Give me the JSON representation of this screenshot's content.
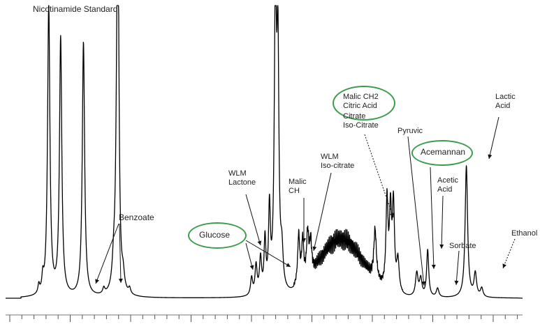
{
  "chart_data": {
    "type": "line",
    "title": "",
    "xlabel": "",
    "ylabel": "",
    "grid": false,
    "legend": "none",
    "series_color": "#000000",
    "highlight_color": "#3c9c4c",
    "x_range": [
      0,
      100
    ],
    "y_range": [
      0,
      100
    ],
    "peaks": [
      {
        "x": 5.6,
        "h": 100,
        "w": 0.28
      },
      {
        "x": 8.0,
        "h": 88,
        "w": 0.28
      },
      {
        "x": 12.6,
        "h": 87,
        "w": 0.28
      },
      {
        "x": 19.6,
        "h": 76,
        "w": 0.22
      },
      {
        "x": 19.4,
        "h": 70,
        "w": 0.3
      },
      {
        "x": 18.7,
        "h": 8,
        "w": 0.35
      },
      {
        "x": 20.6,
        "h": 5,
        "w": 0.3
      },
      {
        "x": 16.7,
        "h": 2,
        "w": 0.25
      },
      {
        "x": 21.9,
        "h": 2,
        "w": 0.25
      },
      {
        "x": 46.5,
        "h": 6,
        "w": 0.25
      },
      {
        "x": 47.4,
        "h": 10,
        "w": 0.25
      },
      {
        "x": 48.3,
        "h": 12,
        "w": 0.25
      },
      {
        "x": 49.2,
        "h": 18,
        "w": 0.22
      },
      {
        "x": 50.1,
        "h": 28,
        "w": 0.22
      },
      {
        "x": 51.3,
        "h": 100,
        "w": 0.26
      },
      {
        "x": 51.8,
        "h": 78,
        "w": 0.24
      },
      {
        "x": 52.6,
        "h": 12,
        "w": 0.3
      },
      {
        "x": 56.0,
        "h": 17,
        "w": 0.25
      },
      {
        "x": 56.8,
        "h": 14,
        "w": 0.25
      },
      {
        "x": 57.8,
        "h": 15,
        "w": 0.25
      },
      {
        "x": 58.4,
        "h": 11,
        "w": 0.25
      },
      {
        "x": 71.4,
        "h": 17,
        "w": 0.3
      },
      {
        "x": 73.8,
        "h": 30,
        "w": 0.25
      },
      {
        "x": 74.5,
        "h": 26,
        "w": 0.25
      },
      {
        "x": 75.1,
        "h": 29,
        "w": 0.25
      },
      {
        "x": 76.0,
        "h": 11,
        "w": 0.3
      },
      {
        "x": 79.8,
        "h": 8,
        "w": 0.3
      },
      {
        "x": 80.6,
        "h": 6,
        "w": 0.3
      },
      {
        "x": 82.0,
        "h": 16,
        "w": 0.25
      },
      {
        "x": 84.0,
        "h": 3,
        "w": 0.3
      },
      {
        "x": 89.8,
        "h": 45,
        "w": 0.3
      },
      {
        "x": 91.6,
        "h": 8,
        "w": 0.3
      },
      {
        "x": 92.9,
        "h": 3,
        "w": 0.3
      },
      {
        "x": 3.6,
        "h": 3,
        "w": 0.2
      },
      {
        "x": 4.4,
        "h": 5,
        "w": 0.2
      }
    ],
    "hump": {
      "center": 64.5,
      "width": 6.2,
      "height": 16
    },
    "annotations": [
      "Nicotinamide Standard",
      "Benzoate",
      "Glucose",
      "WLM\nLactone",
      "Malic\nCH",
      "WLM\nIso-citrate",
      "Malic CH2\nCitric Acid",
      "Citrate\nIso-Citrate",
      "Pyruvic",
      "Acemannan",
      "Acetic\nAcid",
      "Sorbate",
      "Lactic\nAcid",
      "Ethanol"
    ]
  }
}
